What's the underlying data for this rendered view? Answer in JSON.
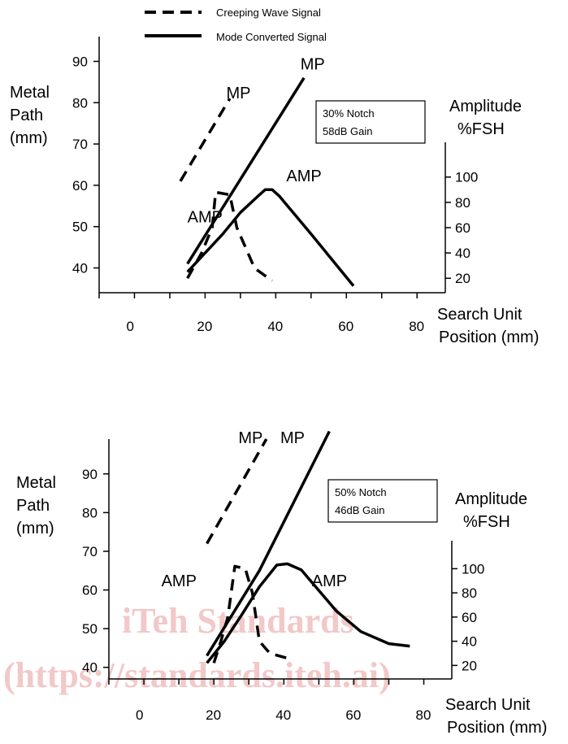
{
  "legend": {
    "creeping": "Creeping Wave Signal",
    "mode": "Mode Converted Signal",
    "color": "#000000"
  },
  "watermark": {
    "line1": "iTeh Standards",
    "line2": "(https://standards.iteh.ai)",
    "color": "#f2c8c8"
  },
  "chart_data": [
    {
      "type": "line",
      "title": "",
      "note": [
        "30% Notch",
        "58dB Gain"
      ],
      "xlabel": [
        "Search Unit",
        "Position (mm)"
      ],
      "ylabel_left": [
        "Metal",
        "Path",
        "(mm)"
      ],
      "ylabel_right": [
        "Amplitude",
        "%FSH"
      ],
      "x_ticks": [
        "0",
        "20",
        "40",
        "60",
        "80"
      ],
      "y_left_ticks": [
        "40",
        "50",
        "60",
        "70",
        "80",
        "90"
      ],
      "y_right_ticks": [
        "20",
        "40",
        "60",
        "80",
        "100"
      ],
      "xlim": [
        -10,
        88
      ],
      "ylim_left": [
        34,
        96
      ],
      "ylim_right_map": {
        "amp": [
          20,
          100
        ],
        "metal_path": [
          37.5,
          62
        ]
      },
      "labels": [
        {
          "text": "MP",
          "x": 26,
          "y": 81
        },
        {
          "text": "MP",
          "x": 47,
          "y": 88
        },
        {
          "text": "AMP",
          "x": 43,
          "y": 61
        },
        {
          "text": "AMP",
          "x": 15,
          "y": 51
        }
      ],
      "series": [
        {
          "kind": "creeping-mp",
          "style": "dashed",
          "x": [
            13,
            27
          ],
          "y": [
            61,
            81
          ]
        },
        {
          "kind": "mode-mp",
          "style": "solid",
          "x": [
            15,
            48
          ],
          "y": [
            41,
            86
          ]
        },
        {
          "kind": "creeping-amp",
          "style": "dashed",
          "x": [
            15,
            19,
            22,
            23,
            27,
            29,
            34,
            39
          ],
          "y": [
            20,
            40,
            60,
            88,
            86,
            60,
            28,
            18
          ]
        },
        {
          "kind": "mode-amp",
          "style": "solid",
          "x": [
            15,
            20,
            25,
            30,
            35,
            37,
            39,
            41,
            50,
            62
          ],
          "y": [
            25,
            40,
            55,
            72,
            85,
            90,
            90,
            85,
            55,
            14
          ]
        }
      ]
    },
    {
      "type": "line",
      "title": "",
      "note": [
        "50% Notch",
        "46dB Gain"
      ],
      "xlabel": [
        "Search Unit",
        "Position (mm)"
      ],
      "ylabel_left": [
        "Metal",
        "Path",
        "(mm)"
      ],
      "ylabel_right": [
        "Amplitude",
        "%FSH"
      ],
      "x_ticks": [
        "0",
        "20",
        "40",
        "60",
        "80"
      ],
      "y_left_ticks": [
        "40",
        "50",
        "60",
        "70",
        "80",
        "90"
      ],
      "y_right_ticks": [
        "20",
        "40",
        "60",
        "80",
        "100"
      ],
      "xlim": [
        -10,
        88
      ],
      "ylim_left": [
        37,
        99
      ],
      "ylim_right_map": {
        "amp": [
          20,
          100
        ],
        "metal_path": [
          40.5,
          65.5
        ]
      },
      "labels": [
        {
          "text": "MP",
          "x": 27,
          "y": 98
        },
        {
          "text": "MP",
          "x": 39,
          "y": 98
        },
        {
          "text": "AMP",
          "x": 48,
          "y": 61
        },
        {
          "text": "AMP",
          "x": 5,
          "y": 61
        }
      ],
      "series": [
        {
          "kind": "creeping-mp",
          "style": "dashed",
          "x": [
            18,
            35
          ],
          "y": [
            72,
            99
          ]
        },
        {
          "kind": "mode-mp",
          "style": "solid",
          "x": [
            18,
            33,
            53
          ],
          "y": [
            43,
            65,
            101
          ]
        },
        {
          "kind": "creeping-amp",
          "style": "dashed",
          "x": [
            20,
            22,
            24,
            26,
            29,
            31,
            33,
            36,
            41
          ],
          "y": [
            22,
            40,
            60,
            102,
            100,
            80,
            40,
            30,
            26
          ]
        },
        {
          "kind": "mode-amp",
          "style": "solid",
          "x": [
            18,
            23,
            28,
            33,
            38,
            41,
            45,
            50,
            55,
            62,
            70,
            76
          ],
          "y": [
            22,
            40,
            62,
            85,
            103,
            104,
            99,
            82,
            65,
            48,
            38,
            36
          ]
        }
      ]
    }
  ]
}
